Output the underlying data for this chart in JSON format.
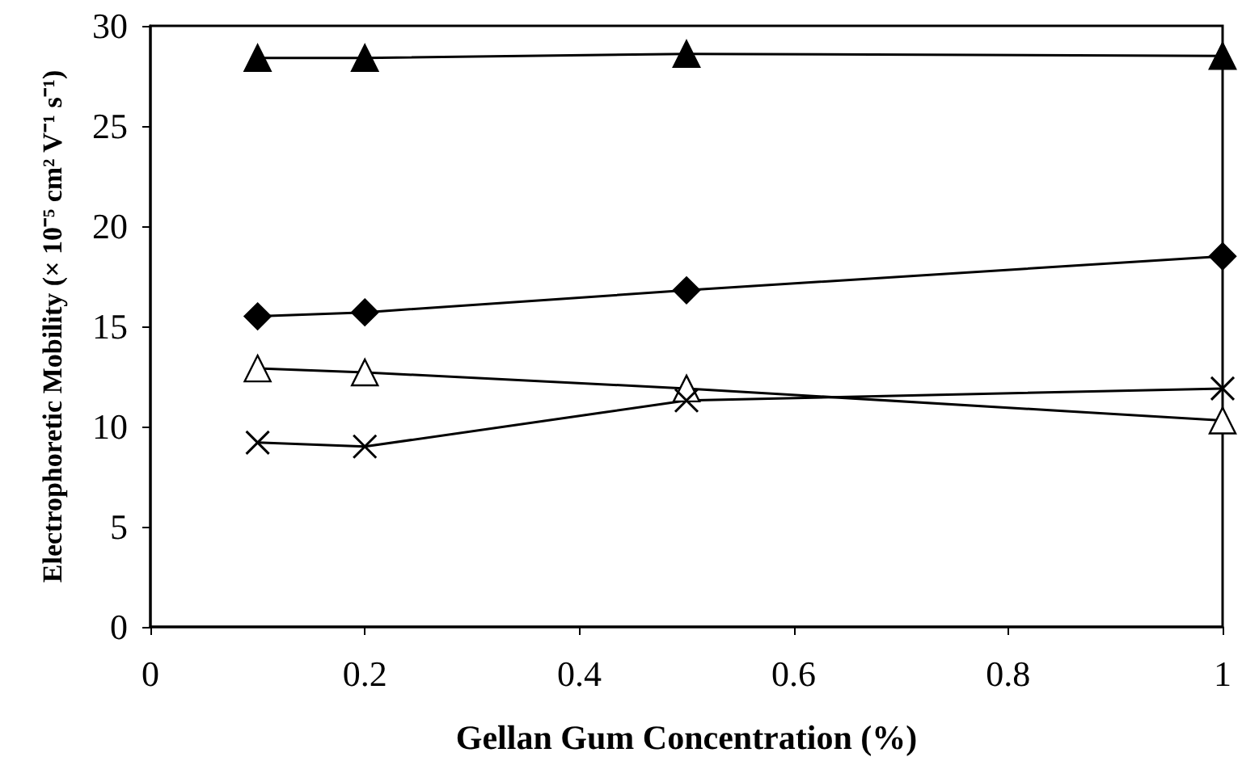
{
  "chart_data": {
    "type": "line",
    "xlabel": "Gellan Gum Concentration (%)",
    "ylabel": "Electrophoretic Mobility (× 10⁻⁵ cm² V⁻¹ s⁻¹)",
    "x": [
      0.1,
      0.2,
      0.5,
      1
    ],
    "series": [
      {
        "color": "#000000",
        "marker": "triangle",
        "values": [
          28.4,
          28.4,
          28.6,
          28.5
        ]
      },
      {
        "color": "#000000",
        "marker": "diamond",
        "values": [
          15.5,
          15.7,
          16.8,
          18.5
        ]
      },
      {
        "color": "#000000",
        "marker": "triangle",
        "values": [
          12.9,
          12.7,
          11.9,
          10.3
        ]
      },
      {
        "color": "#000000",
        "marker": "cross",
        "values": [
          9.2,
          9.0,
          11.3,
          11.9
        ]
      }
    ],
    "xlim": [
      0,
      1
    ],
    "xticks": [
      0,
      0.2,
      0.4,
      0.6,
      0.8,
      1
    ],
    "ylim": [
      0,
      30
    ],
    "yticks": [
      0,
      5,
      10,
      15,
      20,
      25,
      30
    ],
    "grid": false,
    "line_style": "solid"
  }
}
